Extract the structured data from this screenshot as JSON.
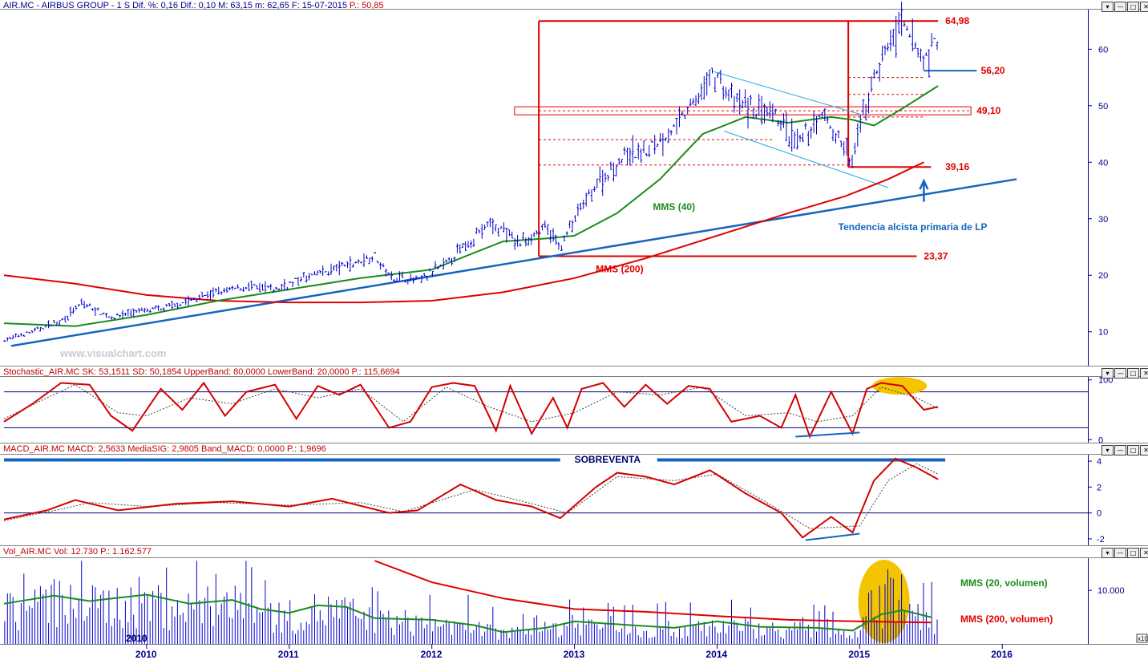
{
  "header": {
    "price_title": "AIR.MC - AIRBUS GROUP - 1 S  Dif. %: 0,16  Dif.: 0,10  M: 63,15  m: 62,65  F: 15-07-2015",
    "price_p": "P.: 50,85",
    "stoch_title": "Stochastic_AIR.MC  SK: 53,1511  SD: 50,1854  UpperBand: 80,0000  LowerBand: 20,0000",
    "stoch_p": "P.: 115,6694",
    "macd_title": "MACD_AIR.MC  MACD: 2,5633  MediaSIG: 2,9805  Band_MACD: 0,0000",
    "macd_p": "P.: 1,9696",
    "vol_title": "Vol_AIR.MC  Vol: 12.730",
    "vol_p": "P.: 1.162.577"
  },
  "window_buttons": [
    "▾",
    "—",
    "□",
    "✕"
  ],
  "watermark": "www.visualchart.com",
  "colors": {
    "price_bar": "#0000cc",
    "mms40": "#1a8c1a",
    "mms200": "#e00000",
    "trendline": "#1565c0",
    "channel": "#29a9e0",
    "levels": "#e00000",
    "highlight": "#f5c400",
    "axis": "#00008b"
  },
  "annotations": {
    "mms40": "MMS (40)",
    "mms200": "MMS (200)",
    "trend": "Tendencia alcista primaria de LP",
    "oversold": "SOBREVENTA",
    "vol20": "MMS (20, volumen)",
    "vol200": "MMS (200, volumen)",
    "vol_scale": "x10",
    "year_inside": "2010"
  },
  "chart_data": [
    {
      "type": "candlestick",
      "title": "AIR.MC - AIRBUS GROUP - 1 S",
      "x_axis": [
        "2010",
        "2011",
        "2012",
        "2013",
        "2014",
        "2015",
        "2016"
      ],
      "ylim": [
        4,
        67
      ],
      "y_ticks": [
        10,
        20,
        30,
        40,
        50,
        60
      ],
      "levels": [
        {
          "label": "64,98",
          "value": 64.98
        },
        {
          "label": "56,20",
          "value": 56.2
        },
        {
          "label": "49,10",
          "value": 49.1
        },
        {
          "label": "39,16",
          "value": 39.16
        },
        {
          "label": "23,37",
          "value": 23.37
        }
      ],
      "price_points": [
        [
          2009.0,
          8.5
        ],
        [
          2009.2,
          10.0
        ],
        [
          2009.4,
          12.0
        ],
        [
          2009.55,
          15.0
        ],
        [
          2009.75,
          12.5
        ],
        [
          2009.9,
          13.5
        ],
        [
          2010.1,
          14.0
        ],
        [
          2010.3,
          15.5
        ],
        [
          2010.5,
          17.0
        ],
        [
          2010.7,
          18.0
        ],
        [
          2010.9,
          17.5
        ],
        [
          2011.1,
          19.5
        ],
        [
          2011.3,
          21.0
        ],
        [
          2011.5,
          22.5
        ],
        [
          2011.6,
          23.5
        ],
        [
          2011.7,
          20.0
        ],
        [
          2011.9,
          19.0
        ],
        [
          2012.1,
          22.0
        ],
        [
          2012.3,
          27.0
        ],
        [
          2012.4,
          29.0
        ],
        [
          2012.5,
          28.0
        ],
        [
          2012.6,
          25.5
        ],
        [
          2012.8,
          28.5
        ],
        [
          2012.9,
          25.0
        ],
        [
          2013.0,
          30.0
        ],
        [
          2013.15,
          36.0
        ],
        [
          2013.35,
          41.0
        ],
        [
          2013.5,
          42.0
        ],
        [
          2013.7,
          46.0
        ],
        [
          2013.85,
          51.0
        ],
        [
          2013.98,
          56.0
        ],
        [
          2014.1,
          51.0
        ],
        [
          2014.3,
          49.0
        ],
        [
          2014.45,
          47.0
        ],
        [
          2014.55,
          43.0
        ],
        [
          2014.75,
          48.5
        ],
        [
          2014.85,
          44.0
        ],
        [
          2014.95,
          40.0
        ],
        [
          2015.0,
          46.0
        ],
        [
          2015.1,
          55.0
        ],
        [
          2015.2,
          61.0
        ],
        [
          2015.3,
          64.0
        ],
        [
          2015.45,
          58.0
        ],
        [
          2015.55,
          62.0
        ]
      ],
      "series": [
        {
          "name": "MMS (40)",
          "points": [
            [
              2009.0,
              11.5
            ],
            [
              2009.5,
              11.0
            ],
            [
              2010.0,
              13.0
            ],
            [
              2010.5,
              15.5
            ],
            [
              2011.0,
              17.5
            ],
            [
              2011.5,
              19.5
            ],
            [
              2012.0,
              21.0
            ],
            [
              2012.5,
              26.0
            ],
            [
              2012.8,
              26.5
            ],
            [
              2013.0,
              27.0
            ],
            [
              2013.3,
              31.0
            ],
            [
              2013.6,
              37.0
            ],
            [
              2013.9,
              45.0
            ],
            [
              2014.2,
              48.0
            ],
            [
              2014.5,
              47.0
            ],
            [
              2014.8,
              48.0
            ],
            [
              2014.95,
              47.5
            ],
            [
              2015.1,
              46.5
            ],
            [
              2015.3,
              49.5
            ],
            [
              2015.55,
              53.5
            ]
          ]
        },
        {
          "name": "MMS (200)",
          "points": [
            [
              2009.0,
              20.0
            ],
            [
              2009.5,
              18.5
            ],
            [
              2010.0,
              16.5
            ],
            [
              2010.5,
              15.5
            ],
            [
              2011.0,
              15.2
            ],
            [
              2011.5,
              15.2
            ],
            [
              2012.0,
              15.5
            ],
            [
              2012.5,
              17.0
            ],
            [
              2013.0,
              19.5
            ],
            [
              2013.5,
              23.0
            ],
            [
              2014.0,
              27.0
            ],
            [
              2014.5,
              31.0
            ],
            [
              2014.9,
              34.0
            ],
            [
              2015.2,
              37.0
            ],
            [
              2015.45,
              40.0
            ]
          ]
        },
        {
          "name": "Tendencia alcista primaria de LP",
          "points": [
            [
              2009.05,
              7.5
            ],
            [
              2016.1,
              37.0
            ]
          ]
        },
        {
          "name": "channel_upper",
          "points": [
            [
              2013.98,
              56.0
            ],
            [
              2015.0,
              48.5
            ]
          ]
        },
        {
          "name": "channel_lower",
          "points": [
            [
              2014.05,
              45.5
            ],
            [
              2015.2,
              35.5
            ]
          ]
        }
      ]
    },
    {
      "type": "line",
      "title": "Stochastic_AIR.MC",
      "ylim": [
        -5,
        105
      ],
      "y_ticks": [
        0,
        100
      ],
      "bands": [
        80,
        20
      ],
      "series": [
        {
          "name": "SK",
          "points": [
            [
              2009.0,
              30
            ],
            [
              2009.2,
              60
            ],
            [
              2009.4,
              95
            ],
            [
              2009.6,
              92
            ],
            [
              2009.75,
              40
            ],
            [
              2009.9,
              15
            ],
            [
              2010.1,
              85
            ],
            [
              2010.25,
              50
            ],
            [
              2010.4,
              95
            ],
            [
              2010.55,
              40
            ],
            [
              2010.7,
              80
            ],
            [
              2010.9,
              92
            ],
            [
              2011.05,
              35
            ],
            [
              2011.2,
              90
            ],
            [
              2011.35,
              75
            ],
            [
              2011.5,
              92
            ],
            [
              2011.7,
              20
            ],
            [
              2011.85,
              30
            ],
            [
              2012.0,
              88
            ],
            [
              2012.15,
              95
            ],
            [
              2012.3,
              90
            ],
            [
              2012.45,
              15
            ],
            [
              2012.55,
              90
            ],
            [
              2012.7,
              10
            ],
            [
              2012.85,
              70
            ],
            [
              2012.95,
              20
            ],
            [
              2013.05,
              85
            ],
            [
              2013.2,
              95
            ],
            [
              2013.35,
              55
            ],
            [
              2013.5,
              92
            ],
            [
              2013.65,
              60
            ],
            [
              2013.8,
              90
            ],
            [
              2013.95,
              85
            ],
            [
              2014.1,
              30
            ],
            [
              2014.3,
              40
            ],
            [
              2014.45,
              20
            ],
            [
              2014.55,
              75
            ],
            [
              2014.65,
              5
            ],
            [
              2014.8,
              80
            ],
            [
              2014.95,
              10
            ],
            [
              2015.05,
              85
            ],
            [
              2015.15,
              95
            ],
            [
              2015.3,
              90
            ],
            [
              2015.45,
              50
            ],
            [
              2015.55,
              55
            ]
          ]
        },
        {
          "name": "SD",
          "points": [
            [
              2009.0,
              35
            ],
            [
              2009.3,
              70
            ],
            [
              2009.5,
              92
            ],
            [
              2009.8,
              45
            ],
            [
              2010.0,
              40
            ],
            [
              2010.3,
              70
            ],
            [
              2010.6,
              60
            ],
            [
              2010.9,
              85
            ],
            [
              2011.2,
              70
            ],
            [
              2011.5,
              85
            ],
            [
              2011.8,
              30
            ],
            [
              2012.1,
              88
            ],
            [
              2012.4,
              55
            ],
            [
              2012.7,
              30
            ],
            [
              2013.0,
              45
            ],
            [
              2013.3,
              80
            ],
            [
              2013.6,
              75
            ],
            [
              2013.9,
              88
            ],
            [
              2014.2,
              40
            ],
            [
              2014.5,
              45
            ],
            [
              2014.7,
              30
            ],
            [
              2014.95,
              40
            ],
            [
              2015.15,
              88
            ],
            [
              2015.4,
              70
            ],
            [
              2015.55,
              52
            ]
          ]
        }
      ]
    },
    {
      "type": "line",
      "title": "MACD_AIR.MC",
      "ylim": [
        -2.5,
        4.5
      ],
      "y_ticks": [
        -2,
        0,
        2,
        4
      ],
      "series": [
        {
          "name": "MACD",
          "points": [
            [
              2009.0,
              -0.5
            ],
            [
              2009.3,
              0.2
            ],
            [
              2009.5,
              1.0
            ],
            [
              2009.8,
              0.2
            ],
            [
              2010.2,
              0.7
            ],
            [
              2010.6,
              0.9
            ],
            [
              2011.0,
              0.5
            ],
            [
              2011.3,
              1.1
            ],
            [
              2011.7,
              0.0
            ],
            [
              2011.9,
              0.2
            ],
            [
              2012.2,
              2.2
            ],
            [
              2012.45,
              1.0
            ],
            [
              2012.7,
              0.5
            ],
            [
              2012.9,
              -0.4
            ],
            [
              2013.15,
              2.0
            ],
            [
              2013.3,
              3.1
            ],
            [
              2013.5,
              2.8
            ],
            [
              2013.7,
              2.2
            ],
            [
              2013.95,
              3.3
            ],
            [
              2014.2,
              1.5
            ],
            [
              2014.45,
              0.0
            ],
            [
              2014.6,
              -1.9
            ],
            [
              2014.8,
              -0.3
            ],
            [
              2014.95,
              -1.5
            ],
            [
              2015.1,
              2.5
            ],
            [
              2015.25,
              4.2
            ],
            [
              2015.4,
              3.5
            ],
            [
              2015.55,
              2.6
            ]
          ]
        },
        {
          "name": "MediaSIG",
          "points": [
            [
              2009.0,
              -0.6
            ],
            [
              2009.4,
              0.3
            ],
            [
              2009.6,
              0.8
            ],
            [
              2010.0,
              0.5
            ],
            [
              2010.5,
              0.8
            ],
            [
              2011.0,
              0.6
            ],
            [
              2011.5,
              0.8
            ],
            [
              2011.8,
              0.1
            ],
            [
              2012.3,
              1.8
            ],
            [
              2012.6,
              1.0
            ],
            [
              2012.95,
              0.0
            ],
            [
              2013.3,
              2.8
            ],
            [
              2013.7,
              2.5
            ],
            [
              2014.0,
              3.0
            ],
            [
              2014.35,
              0.8
            ],
            [
              2014.65,
              -1.2
            ],
            [
              2015.0,
              -1.0
            ],
            [
              2015.2,
              2.5
            ],
            [
              2015.4,
              3.8
            ],
            [
              2015.55,
              3.0
            ]
          ]
        }
      ]
    },
    {
      "type": "bar",
      "title": "Vol_AIR.MC",
      "ylim": [
        0,
        16000
      ],
      "y_ticks": [
        10000
      ],
      "y_tick_labels": [
        "10.000"
      ],
      "series": [
        {
          "name": "MMS (20, volumen)",
          "points": [
            [
              2009.0,
              7500
            ],
            [
              2009.35,
              9000
            ],
            [
              2009.6,
              8000
            ],
            [
              2010.0,
              9200
            ],
            [
              2010.3,
              7500
            ],
            [
              2010.6,
              8200
            ],
            [
              2010.8,
              6500
            ],
            [
              2011.0,
              5800
            ],
            [
              2011.2,
              7200
            ],
            [
              2011.4,
              6900
            ],
            [
              2011.6,
              4800
            ],
            [
              2012.0,
              4500
            ],
            [
              2012.3,
              3500
            ],
            [
              2012.5,
              2200
            ],
            [
              2012.8,
              3000
            ],
            [
              2013.0,
              4200
            ],
            [
              2013.4,
              3500
            ],
            [
              2013.7,
              3000
            ],
            [
              2014.0,
              4200
            ],
            [
              2014.3,
              3200
            ],
            [
              2014.7,
              3000
            ],
            [
              2014.95,
              2500
            ],
            [
              2015.15,
              5500
            ],
            [
              2015.3,
              6300
            ],
            [
              2015.5,
              5000
            ]
          ]
        },
        {
          "name": "MMS (200, volumen)",
          "points": [
            [
              2011.6,
              15500
            ],
            [
              2012.0,
              11500
            ],
            [
              2012.5,
              8500
            ],
            [
              2013.0,
              6500
            ],
            [
              2013.5,
              6000
            ],
            [
              2014.0,
              5200
            ],
            [
              2014.5,
              4500
            ],
            [
              2015.0,
              4200
            ],
            [
              2015.5,
              4000
            ]
          ]
        }
      ]
    }
  ]
}
